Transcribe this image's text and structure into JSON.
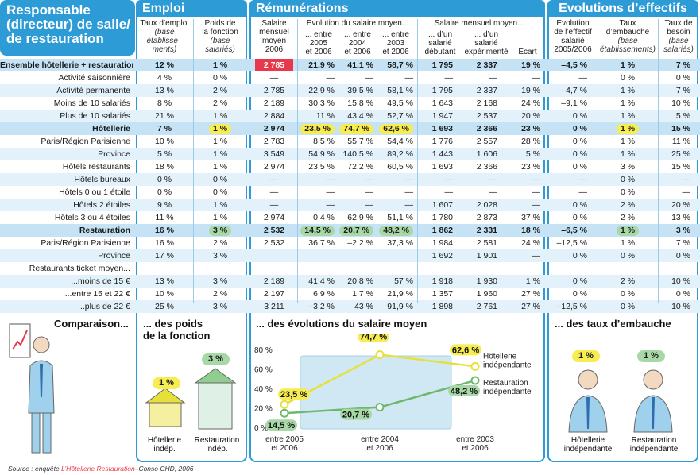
{
  "title": [
    "Responsable",
    "(directeur) de salle/",
    "de restauration"
  ],
  "sections": {
    "emploi": "Emploi",
    "remunerations": "Rémunérations",
    "evolutions": "Evolutions d’effectifs"
  },
  "headers": {
    "taux_emploi": [
      "Taux d’emploi"
    ],
    "taux_emploi_note": [
      "(base",
      "établisse–",
      "ments)"
    ],
    "poids": [
      "Poids de",
      "la fonction"
    ],
    "poids_note": [
      "(base",
      "salariés)"
    ],
    "salaire_moyen": [
      "Salaire",
      "mensuel",
      "moyen",
      "2006"
    ],
    "evol_group": "Evolution du salaire moyen...",
    "evol_2005": [
      "... entre",
      "2005",
      "et 2006"
    ],
    "evol_2004": [
      "... entre",
      "2004",
      "et 2006"
    ],
    "evol_2003": [
      "... entre",
      "2003",
      "et 2006"
    ],
    "sal_group": "Salaire mensuel moyen...",
    "debutant": [
      "... d’un",
      "salarié",
      "débutant"
    ],
    "experimente": [
      "... d’un",
      "salarié",
      "expérimenté"
    ],
    "ecart": "Ecart",
    "evol_effectif": [
      "Evolution",
      "de l’effectif",
      "salarié",
      "2005/2006"
    ],
    "taux_embauche": [
      "Taux",
      "d’embauche"
    ],
    "taux_embauche_note": [
      "(base",
      "établissements)"
    ],
    "taux_besoin": [
      "Taux de",
      "besoin"
    ],
    "taux_besoin_note": [
      "(base",
      "salariés)"
    ]
  },
  "rows": [
    {
      "label": "Ensemble hôtellerie + restauration",
      "type": "hl0",
      "v": [
        "12 %",
        "1 %",
        "2 785",
        "21,9 %",
        "41,1 %",
        "58,7 %",
        "1 795",
        "2 337",
        "19 %",
        "–4,5 %",
        "1 %",
        "7 %"
      ]
    },
    {
      "label": "Activité saisonnière",
      "type": "n",
      "v": [
        "4 %",
        "0 %",
        "—",
        "—",
        "—",
        "—",
        "—",
        "—",
        "—",
        "—",
        "0 %",
        "0 %"
      ]
    },
    {
      "label": "Activité permanente",
      "type": "b",
      "v": [
        "13 %",
        "2 %",
        "2 785",
        "22,9 %",
        "39,5 %",
        "58,1 %",
        "1 795",
        "2 337",
        "19 %",
        "–4,7 %",
        "1 %",
        "7 %"
      ]
    },
    {
      "label": "Moins de 10 salariés",
      "type": "n",
      "v": [
        "8 %",
        "2 %",
        "2 189",
        "30,3 %",
        "15,8 %",
        "49,5 %",
        "1 643",
        "2 168",
        "24 %",
        "–9,1 %",
        "1 %",
        "10 %"
      ]
    },
    {
      "label": "Plus de 10 salariés",
      "type": "b",
      "v": [
        "21 %",
        "1 %",
        "2 884",
        "11 %",
        "43,4 %",
        "52,7 %",
        "1 947",
        "2 537",
        "20 %",
        "0 %",
        "1 %",
        "5 %"
      ]
    },
    {
      "label": "Hôtellerie",
      "type": "hl1",
      "v": [
        "7 %",
        "1 %",
        "2 974",
        "23,5 %",
        "74,7 %",
        "62,6 %",
        "1 693",
        "2 366",
        "23 %",
        "0 %",
        "1 %",
        "15 %"
      ]
    },
    {
      "label": "Paris/Région Parisienne",
      "type": "n",
      "v": [
        "10 %",
        "1 %",
        "2 783",
        "8,5 %",
        "55,7 %",
        "54,4 %",
        "1 776",
        "2 557",
        "28 %",
        "0 %",
        "1 %",
        "11 %"
      ]
    },
    {
      "label": "Province",
      "type": "b",
      "v": [
        "5 %",
        "1 %",
        "3 549",
        "54,9 %",
        "140,5 %",
        "89,2 %",
        "1 443",
        "1 606",
        "5 %",
        "0 %",
        "1 %",
        "25 %"
      ]
    },
    {
      "label": "Hôtels restaurants",
      "type": "n",
      "v": [
        "18 %",
        "1 %",
        "2 974",
        "23,5 %",
        "72,2 %",
        "60,5 %",
        "1 693",
        "2 366",
        "23 %",
        "0 %",
        "3 %",
        "15 %"
      ]
    },
    {
      "label": "Hôtels bureaux",
      "type": "b",
      "v": [
        "0 %",
        "0 %",
        "—",
        "—",
        "—",
        "—",
        "—",
        "—",
        "—",
        "—",
        "0 %",
        "—"
      ]
    },
    {
      "label": "Hôtels 0 ou 1 étoile",
      "type": "n",
      "v": [
        "0 %",
        "0 %",
        "—",
        "—",
        "—",
        "—",
        "—",
        "—",
        "—",
        "—",
        "0 %",
        "—"
      ]
    },
    {
      "label": "Hôtels 2 étoiles",
      "type": "b",
      "v": [
        "9 %",
        "1 %",
        "—",
        "—",
        "—",
        "—",
        "1 607",
        "2 028",
        "—",
        "0 %",
        "2 %",
        "20 %"
      ]
    },
    {
      "label": "Hôtels 3 ou 4 étoiles",
      "type": "n",
      "v": [
        "11 %",
        "1 %",
        "2 974",
        "0,4 %",
        "62,9 %",
        "51,1 %",
        "1 780",
        "2 873",
        "37 %",
        "0 %",
        "2 %",
        "13 %"
      ]
    },
    {
      "label": "Restauration",
      "type": "hl2",
      "v": [
        "16 %",
        "3 %",
        "2 532",
        "14,5 %",
        "20,7 %",
        "48,2 %",
        "1 862",
        "2 331",
        "18 %",
        "–6,5 %",
        "1 %",
        "3 %"
      ]
    },
    {
      "label": "Paris/Région Parisienne",
      "type": "n",
      "v": [
        "16 %",
        "2 %",
        "2 532",
        "36,7 %",
        "–2,2 %",
        "37,3 %",
        "1 984",
        "2 581",
        "24 %",
        "–12,5 %",
        "1 %",
        "7 %"
      ]
    },
    {
      "label": "Province",
      "type": "b",
      "v": [
        "17 %",
        "3 %",
        "",
        "",
        "",
        "",
        "1 692",
        "1 901",
        "—",
        "0 %",
        "0 %",
        "0 %"
      ]
    },
    {
      "label": "Restaurants ticket moyen...",
      "type": "n",
      "v": [
        "",
        "",
        "",
        "",
        "",
        "",
        "",
        "",
        "",
        "",
        "",
        ""
      ]
    },
    {
      "label": "...moins de 15 €",
      "type": "b",
      "v": [
        "13 %",
        "3 %",
        "2 189",
        "41,4 %",
        "20,8 %",
        "57 %",
        "1 918",
        "1 930",
        "1 %",
        "0 %",
        "2 %",
        "10 %"
      ]
    },
    {
      "label": "...entre 15 et 22 €",
      "type": "n",
      "v": [
        "10 %",
        "2 %",
        "2 197",
        "6,9 %",
        "1,7 %",
        "21,9 %",
        "1 357",
        "1 960",
        "27 %",
        "0 %",
        "0 %",
        "0 %"
      ]
    },
    {
      "label": "...plus de 22 €",
      "type": "b",
      "v": [
        "25 %",
        "3 %",
        "3 211",
        "–3,2 %",
        "43 %",
        "91,9 %",
        "1 898",
        "2 761",
        "27 %",
        "–12,5 %",
        "0 %",
        "10 %"
      ]
    }
  ],
  "bottom": {
    "comparaison": "Comparaison...",
    "poids_title": [
      "... des poids",
      "de la fonction"
    ],
    "evol_title": "... des évolutions du salaire moyen",
    "embauche_title": "... des taux d’embauche",
    "poids_hotel": "1 %",
    "poids_resto": "3 %",
    "lbl_hotel": [
      "Hôtellerie",
      "indép."
    ],
    "lbl_resto": [
      "Restauration",
      "indép."
    ],
    "emb_hotel": "1 %",
    "emb_resto": "1 %",
    "emb_lbl_hotel": [
      "Hôtellerie",
      "indépendante"
    ],
    "emb_lbl_resto": [
      "Restauration",
      "indépendante"
    ]
  },
  "chart_data": {
    "type": "line",
    "categories": [
      "entre 2005\net 2006",
      "entre 2004\net 2006",
      "entre 2003\net 2006"
    ],
    "category_lines": [
      [
        "entre 2005",
        "et 2006"
      ],
      [
        "entre 2004",
        "et 2006"
      ],
      [
        "entre 2003",
        "et 2006"
      ]
    ],
    "yticks": [
      "80 %",
      "60 %",
      "40 %",
      "20 %",
      "0 %"
    ],
    "ylim": [
      0,
      80
    ],
    "series": [
      {
        "name": "Hôtellerie indépendante",
        "name_lines": [
          "Hôtellerie",
          "indépendante"
        ],
        "values": [
          23.5,
          74.7,
          62.6
        ],
        "labels": [
          "23,5 %",
          "74,7 %",
          "62,6 %"
        ],
        "color": "#e8e03a"
      },
      {
        "name": "Restauration indépendante",
        "name_lines": [
          "Restauration",
          "indépendante"
        ],
        "values": [
          14.5,
          20.7,
          48.2
        ],
        "labels": [
          "14,5 %",
          "20,7 %",
          "48,2 %"
        ],
        "color": "#6db86d"
      }
    ]
  },
  "source": {
    "prefix": "Source : enquête ",
    "brand": "L’Hôtellerie Restauration",
    "suffix": "–Conso CHD, 2006"
  },
  "colors": {
    "accent": "#2d9bd6",
    "yellow": "#f7ec52",
    "green": "#a8d8a8",
    "red": "#e8394a"
  }
}
